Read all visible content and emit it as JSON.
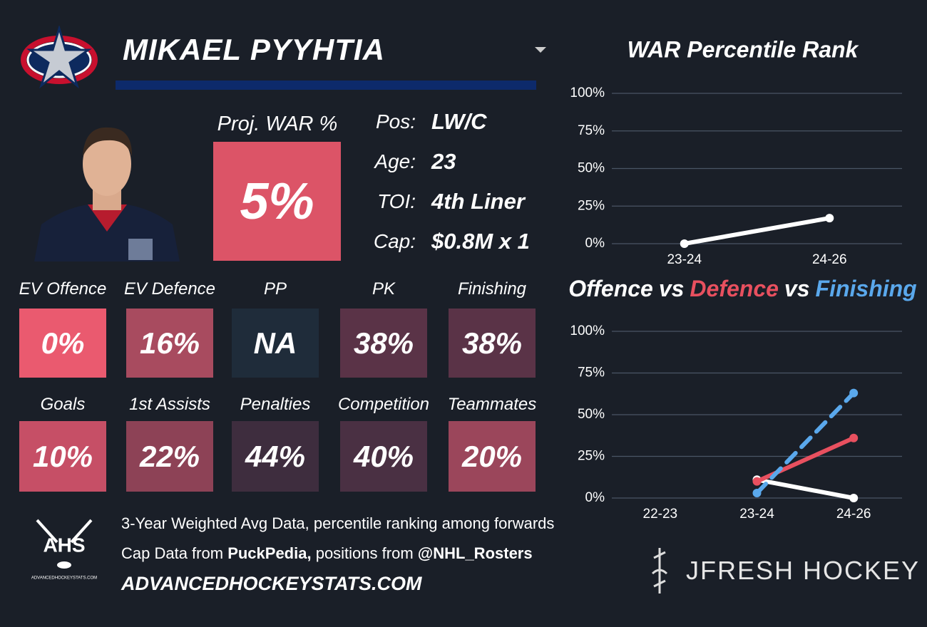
{
  "header": {
    "player_name": "MIKAEL PYYHTIA"
  },
  "projected_war": {
    "label": "Proj. WAR %",
    "value": "5%",
    "color": "#dc5467"
  },
  "info": [
    {
      "label": "Pos:",
      "value": "LW/C"
    },
    {
      "label": "Age:",
      "value": "23"
    },
    {
      "label": "TOI:",
      "value": "4th Liner"
    },
    {
      "label": "Cap:",
      "value": "$0.8M x 1"
    }
  ],
  "tiles": [
    [
      {
        "label": "EV Offence",
        "value": "0%",
        "color": "#ea5a6f"
      },
      {
        "label": "EV Defence",
        "value": "16%",
        "color": "#a84b5f"
      },
      {
        "label": "PP",
        "value": "NA",
        "color": "#1f2c3a"
      },
      {
        "label": "PK",
        "value": "38%",
        "color": "#5a3347"
      },
      {
        "label": "Finishing",
        "value": "38%",
        "color": "#5a3347"
      }
    ],
    [
      {
        "label": "Goals",
        "value": "10%",
        "color": "#c64f66"
      },
      {
        "label": "1st Assists",
        "value": "22%",
        "color": "#8d4256"
      },
      {
        "label": "Penalties",
        "value": "44%",
        "color": "#3e2d3e"
      },
      {
        "label": "Competition",
        "value": "40%",
        "color": "#4a3043"
      },
      {
        "label": "Teammates",
        "value": "20%",
        "color": "#9b465b"
      }
    ]
  ],
  "footer": {
    "note": "3-Year Weighted Avg Data, percentile ranking among forwards",
    "cap_prefix": "Cap Data from",
    "cap_source": "PuckPedia,",
    "positions_prefix": "positions from",
    "positions_source": "@NHL_Rosters",
    "site": "ADVANCEDHOCKEYSTATS.COM",
    "ahs_logo": "AHS",
    "ahs_logo_url": "ADVANCEDHOCKEYSTATS.COM",
    "brand": "JFRESH HOCKEY"
  },
  "chart_data": [
    {
      "type": "line",
      "title": "WAR Percentile Rank",
      "categories": [
        "23-24",
        "24-26"
      ],
      "series": [
        {
          "name": "WAR",
          "color": "#ffffff",
          "values": [
            0,
            17
          ]
        }
      ],
      "ylim": [
        0,
        100
      ],
      "grid": true,
      "yticks": [
        {
          "value": 0,
          "label": "0%"
        },
        {
          "value": 25,
          "label": "25%"
        },
        {
          "value": 50,
          "label": "50%"
        },
        {
          "value": 75,
          "label": "75%"
        },
        {
          "value": 100,
          "label": "100%"
        }
      ]
    },
    {
      "type": "line",
      "title_joiner": "vs",
      "categories": [
        "22-23",
        "23-24",
        "24-26"
      ],
      "series": [
        {
          "name": "Offence",
          "color": "#ffffff",
          "values": [
            null,
            11,
            0
          ]
        },
        {
          "name": "Defence",
          "color": "#e8505f",
          "values": [
            null,
            10,
            36
          ]
        },
        {
          "name": "Finishing",
          "color": "#5aa8ec",
          "dashed": true,
          "values": [
            null,
            3,
            63
          ]
        }
      ],
      "ylim": [
        0,
        100
      ],
      "grid": true,
      "yticks": [
        {
          "value": 0,
          "label": "0%"
        },
        {
          "value": 25,
          "label": "25%"
        },
        {
          "value": 50,
          "label": "50%"
        },
        {
          "value": 75,
          "label": "75%"
        },
        {
          "value": 100,
          "label": "100%"
        }
      ]
    }
  ]
}
